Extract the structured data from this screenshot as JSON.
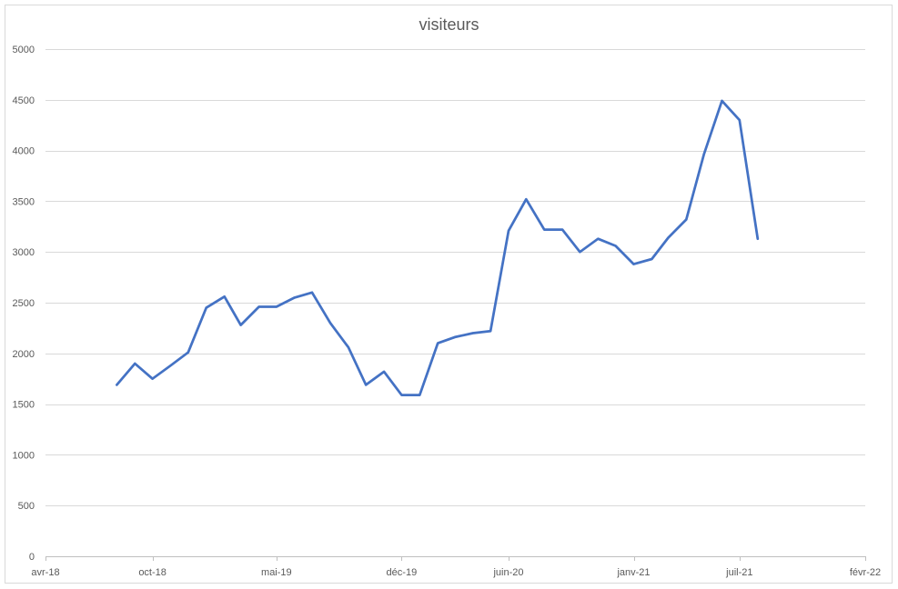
{
  "chart_data": {
    "type": "line",
    "title": "visiteurs",
    "xlabel": "",
    "ylabel": "",
    "ylim": [
      0,
      5000
    ],
    "yticks": [
      0,
      500,
      1000,
      1500,
      2000,
      2500,
      3000,
      3500,
      4000,
      4500,
      5000
    ],
    "xlim": [
      "2018-04-01",
      "2022-02-01"
    ],
    "xticks": [
      {
        "date": "2018-04-01",
        "label": "avr-18"
      },
      {
        "date": "2018-10-01",
        "label": "oct-18"
      },
      {
        "date": "2019-05-01",
        "label": "mai-19"
      },
      {
        "date": "2019-12-01",
        "label": "déc-19"
      },
      {
        "date": "2020-06-01",
        "label": "juin-20"
      },
      {
        "date": "2021-01-01",
        "label": "janv-21"
      },
      {
        "date": "2021-07-01",
        "label": "juil-21"
      },
      {
        "date": "2022-02-01",
        "label": "févr-22"
      }
    ],
    "grid": true,
    "color": "#4472c4",
    "series": [
      {
        "name": "",
        "points": [
          {
            "x": "2018-08-01",
            "y": 1690
          },
          {
            "x": "2018-09-01",
            "y": 1900
          },
          {
            "x": "2018-10-01",
            "y": 1750
          },
          {
            "x": "2018-11-01",
            "y": 1880
          },
          {
            "x": "2018-12-01",
            "y": 2010
          },
          {
            "x": "2019-01-01",
            "y": 2450
          },
          {
            "x": "2019-02-01",
            "y": 2560
          },
          {
            "x": "2019-03-01",
            "y": 2280
          },
          {
            "x": "2019-04-01",
            "y": 2460
          },
          {
            "x": "2019-05-01",
            "y": 2460
          },
          {
            "x": "2019-06-01",
            "y": 2550
          },
          {
            "x": "2019-07-01",
            "y": 2600
          },
          {
            "x": "2019-08-01",
            "y": 2300
          },
          {
            "x": "2019-09-01",
            "y": 2060
          },
          {
            "x": "2019-10-01",
            "y": 1690
          },
          {
            "x": "2019-11-01",
            "y": 1820
          },
          {
            "x": "2019-12-01",
            "y": 1590
          },
          {
            "x": "2020-01-01",
            "y": 1590
          },
          {
            "x": "2020-02-01",
            "y": 2100
          },
          {
            "x": "2020-03-01",
            "y": 2160
          },
          {
            "x": "2020-04-01",
            "y": 2200
          },
          {
            "x": "2020-05-01",
            "y": 2220
          },
          {
            "x": "2020-06-01",
            "y": 3210
          },
          {
            "x": "2020-07-01",
            "y": 3520
          },
          {
            "x": "2020-08-01",
            "y": 3220
          },
          {
            "x": "2020-09-01",
            "y": 3220
          },
          {
            "x": "2020-10-01",
            "y": 3000
          },
          {
            "x": "2020-11-01",
            "y": 3130
          },
          {
            "x": "2020-12-01",
            "y": 3060
          },
          {
            "x": "2021-01-01",
            "y": 2880
          },
          {
            "x": "2021-02-01",
            "y": 2930
          },
          {
            "x": "2021-03-01",
            "y": 3140
          },
          {
            "x": "2021-04-01",
            "y": 3320
          },
          {
            "x": "2021-05-01",
            "y": 3960
          },
          {
            "x": "2021-06-01",
            "y": 4490
          },
          {
            "x": "2021-07-01",
            "y": 4300
          },
          {
            "x": "2021-08-01",
            "y": 3130
          }
        ]
      }
    ]
  }
}
